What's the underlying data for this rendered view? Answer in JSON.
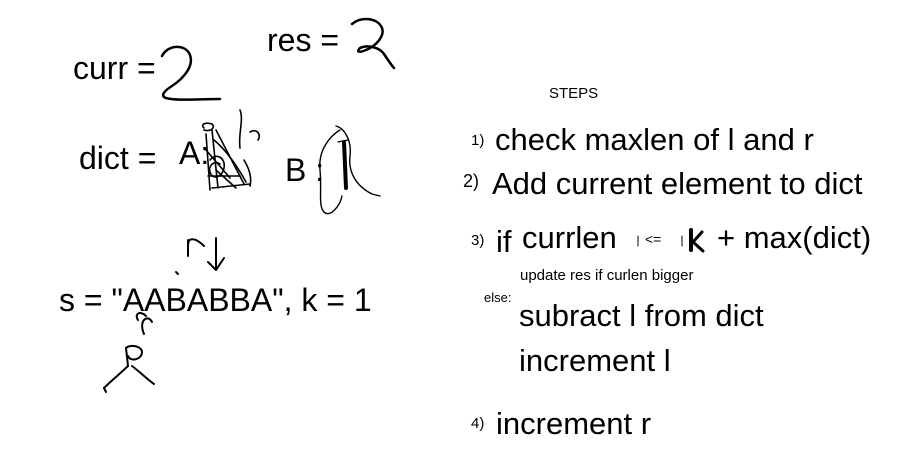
{
  "left": {
    "curr_label": "curr =",
    "res_label": "res =",
    "dict_label": "dict =",
    "dict_a_label": "A:",
    "dict_b_label": "B :",
    "string_line": "s = \"AABABBA\", k = 1",
    "pointer_top_letter": "r"
  },
  "steps": {
    "heading": "STEPS",
    "items": [
      {
        "num": "1)",
        "text": "check maxlen of l and r"
      },
      {
        "num": "2)",
        "text": "Add current element to dict"
      },
      {
        "num": "3)",
        "if_word": "if",
        "currlen": "currlen",
        "op": "<=",
        "k": "k",
        "rest": "+ max(dict)",
        "sub": "update res if curlen bigger",
        "else_word": "else:",
        "else_lines": [
          "subract l from dict",
          "increment l"
        ]
      },
      {
        "num": "4)",
        "text": "increment r"
      }
    ]
  }
}
